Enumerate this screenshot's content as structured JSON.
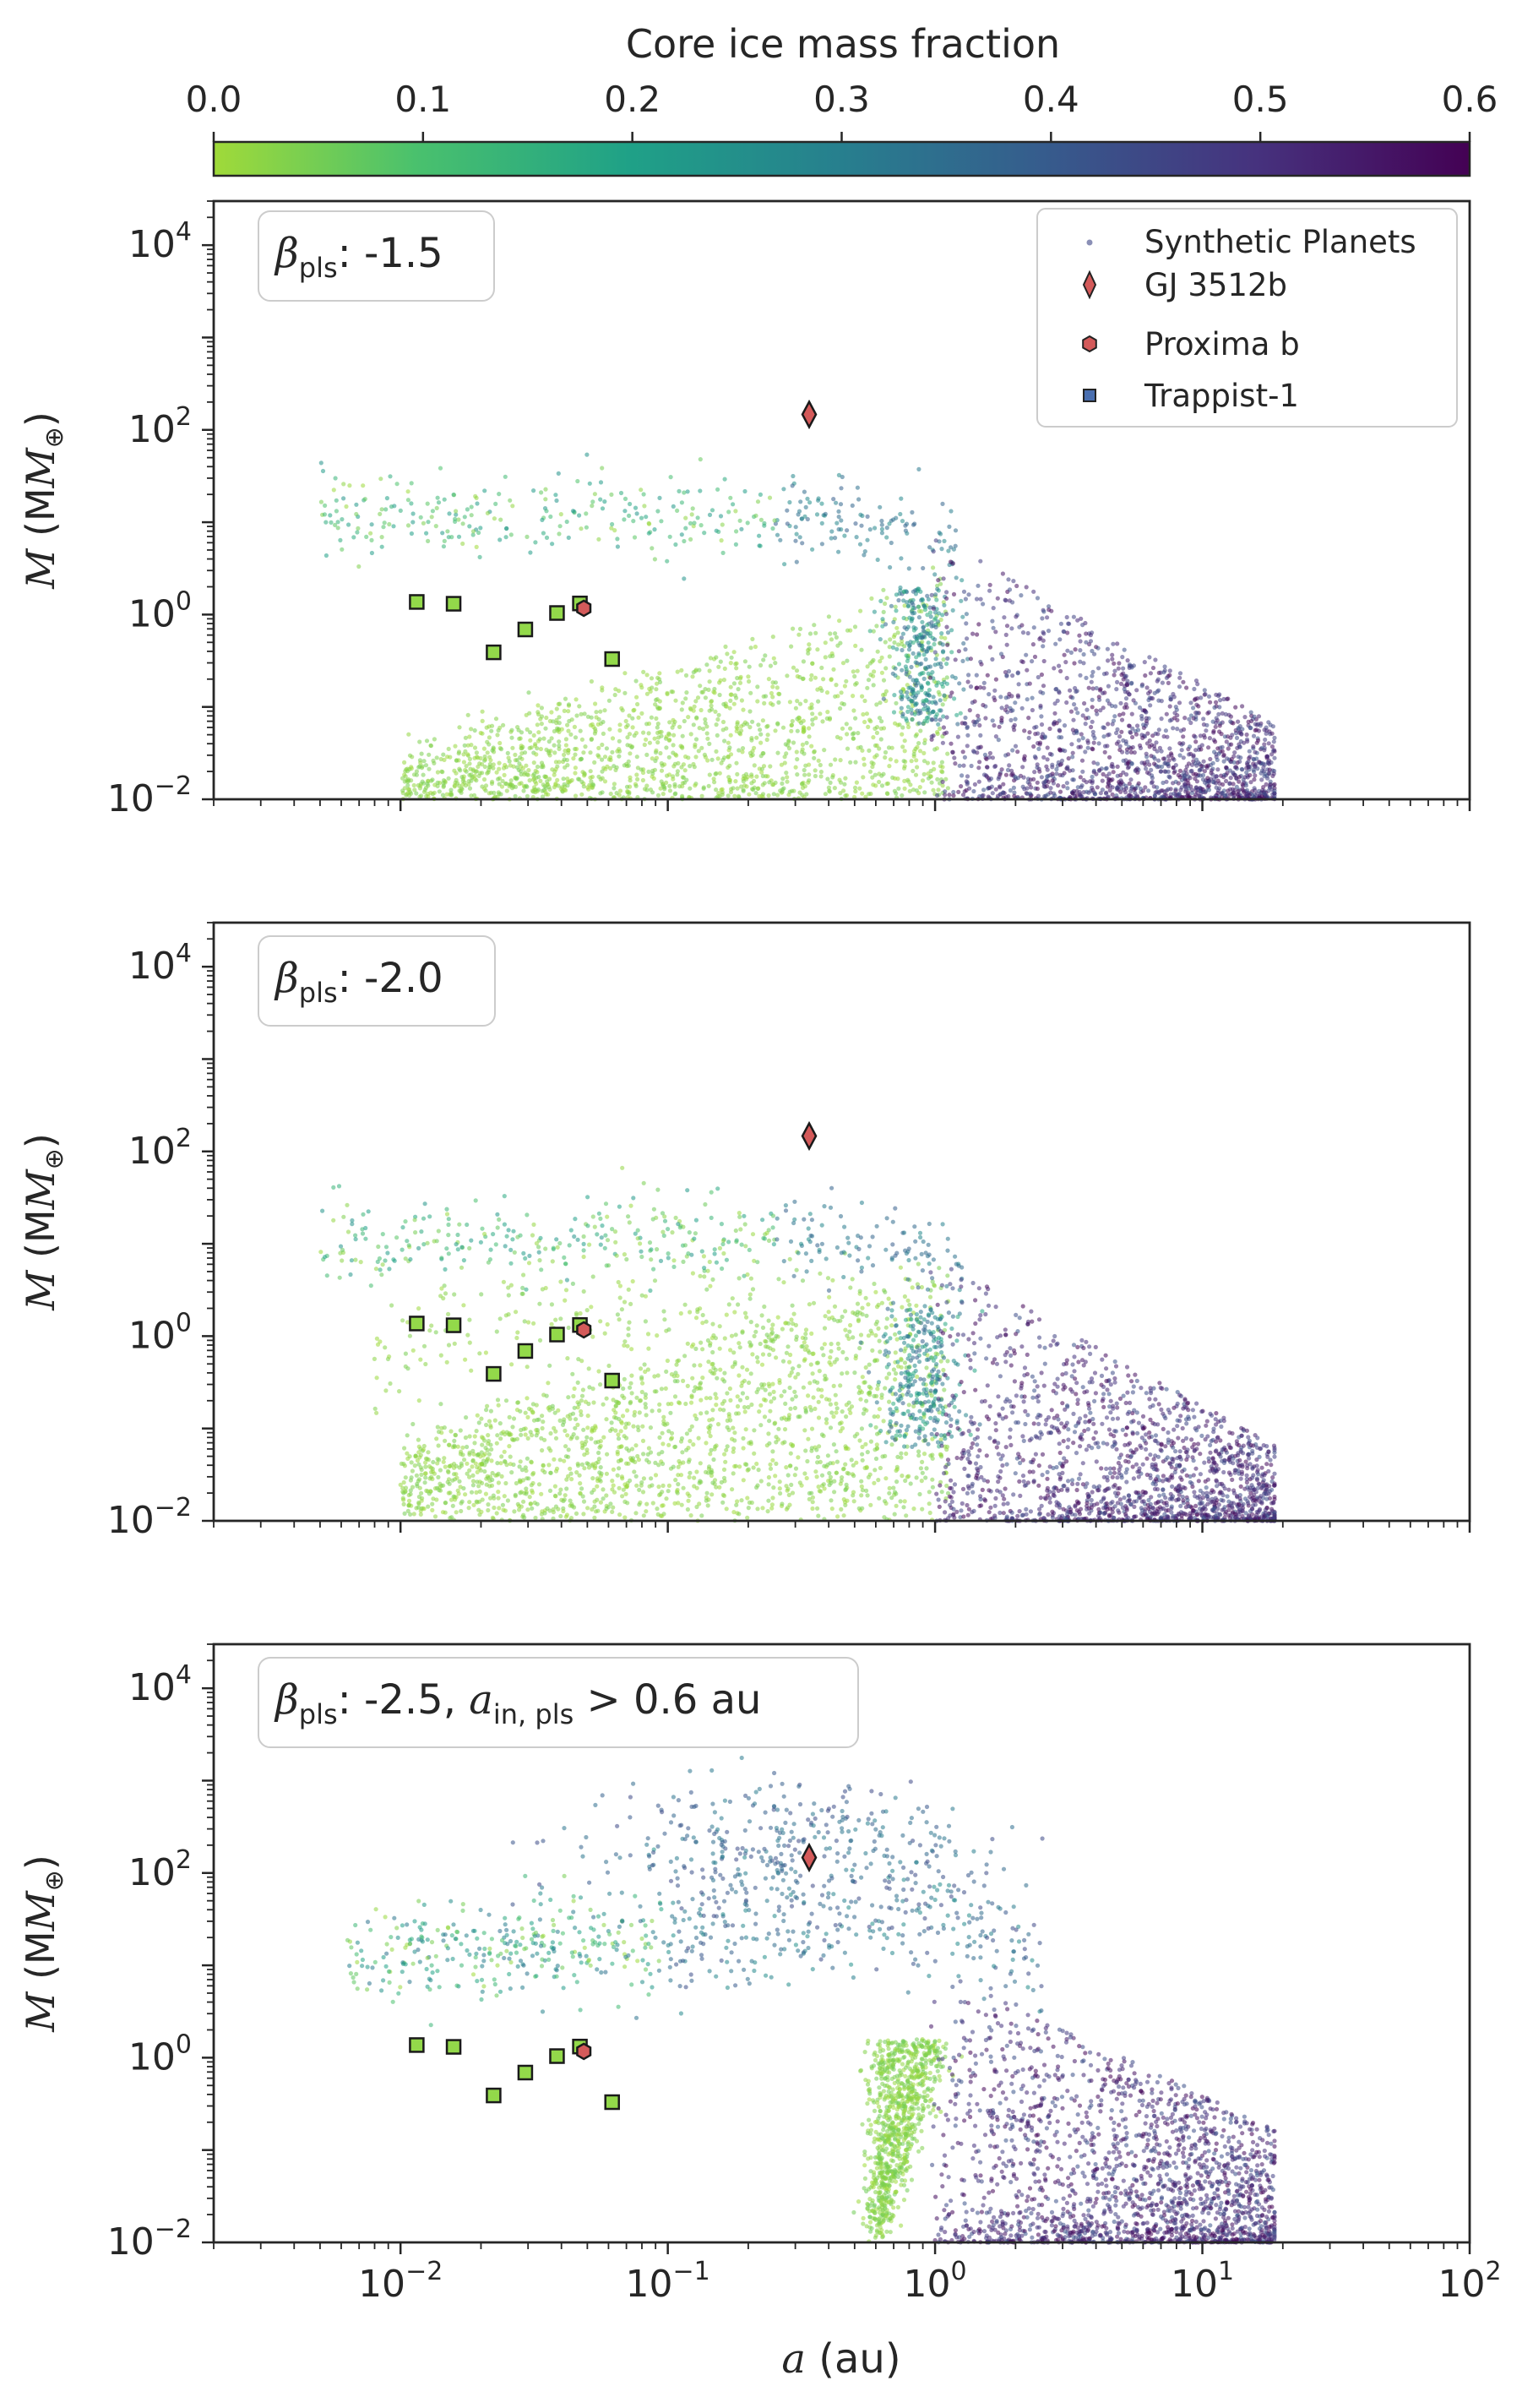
{
  "colorbar": {
    "label": "Core ice mass fraction",
    "ticks": [
      "0.0",
      "0.1",
      "0.2",
      "0.3",
      "0.4",
      "0.5",
      "0.6"
    ],
    "range": [
      0,
      0.6
    ],
    "colors": [
      "#a0da39",
      "#4ac16d",
      "#1fa187",
      "#277f8e",
      "#365c8d",
      "#46327e",
      "#440154"
    ]
  },
  "legend": {
    "items": [
      {
        "label": "Synthetic Planets",
        "marker": "dot"
      },
      {
        "label": "GJ 3512b",
        "marker": "diamond"
      },
      {
        "label": "Proxima b",
        "marker": "hexagon"
      },
      {
        "label": "Trappist-1",
        "marker": "square"
      }
    ]
  },
  "axes": {
    "xlabel_italic": "a",
    "xlabel_rest": " (au)",
    "ylabel_italic": "M",
    "ylabel_rest": " (M",
    "ylabel_sub": "⊕",
    "ylabel_close": ")",
    "x_tick_base": "10",
    "x_tick_exps": [
      "−2",
      "−1",
      "0",
      "1",
      "2"
    ],
    "y_tick_base": "10",
    "y_tick_exps": [
      "−2",
      "0",
      "2",
      "4"
    ]
  },
  "panels": [
    {
      "beta_symbol": "β",
      "beta_sub": "pls",
      "beta_value": ": -1.5",
      "extra_pre": "",
      "extra_sub": "",
      "extra_post": ""
    },
    {
      "beta_symbol": "β",
      "beta_sub": "pls",
      "beta_value": ": -2.0",
      "extra_pre": "",
      "extra_sub": "",
      "extra_post": ""
    },
    {
      "beta_symbol": "β",
      "beta_sub": "pls",
      "beta_value": ": -2.5, ",
      "extra_pre": "a",
      "extra_sub": "in, pls",
      "extra_post": " > 0.6 au"
    }
  ],
  "chart_data": {
    "type": "scatter",
    "x_scale": "log",
    "y_scale": "log",
    "xlim": [
      0.002,
      100
    ],
    "ylim": [
      0.01,
      30000
    ],
    "series": [
      {
        "name": "Trappist-1",
        "marker": "square",
        "points": [
          {
            "a": 0.0115,
            "M": 1.37
          },
          {
            "a": 0.0158,
            "M": 1.31
          },
          {
            "a": 0.0223,
            "M": 0.39
          },
          {
            "a": 0.0293,
            "M": 0.69
          },
          {
            "a": 0.0385,
            "M": 1.04
          },
          {
            "a": 0.0469,
            "M": 1.32
          },
          {
            "a": 0.0619,
            "M": 0.33
          }
        ]
      },
      {
        "name": "Proxima b",
        "marker": "hexagon",
        "points": [
          {
            "a": 0.0485,
            "M": 1.17
          }
        ]
      },
      {
        "name": "GJ 3512b",
        "marker": "diamond",
        "points": [
          {
            "a": 0.338,
            "M": 147
          }
        ]
      }
    ]
  }
}
